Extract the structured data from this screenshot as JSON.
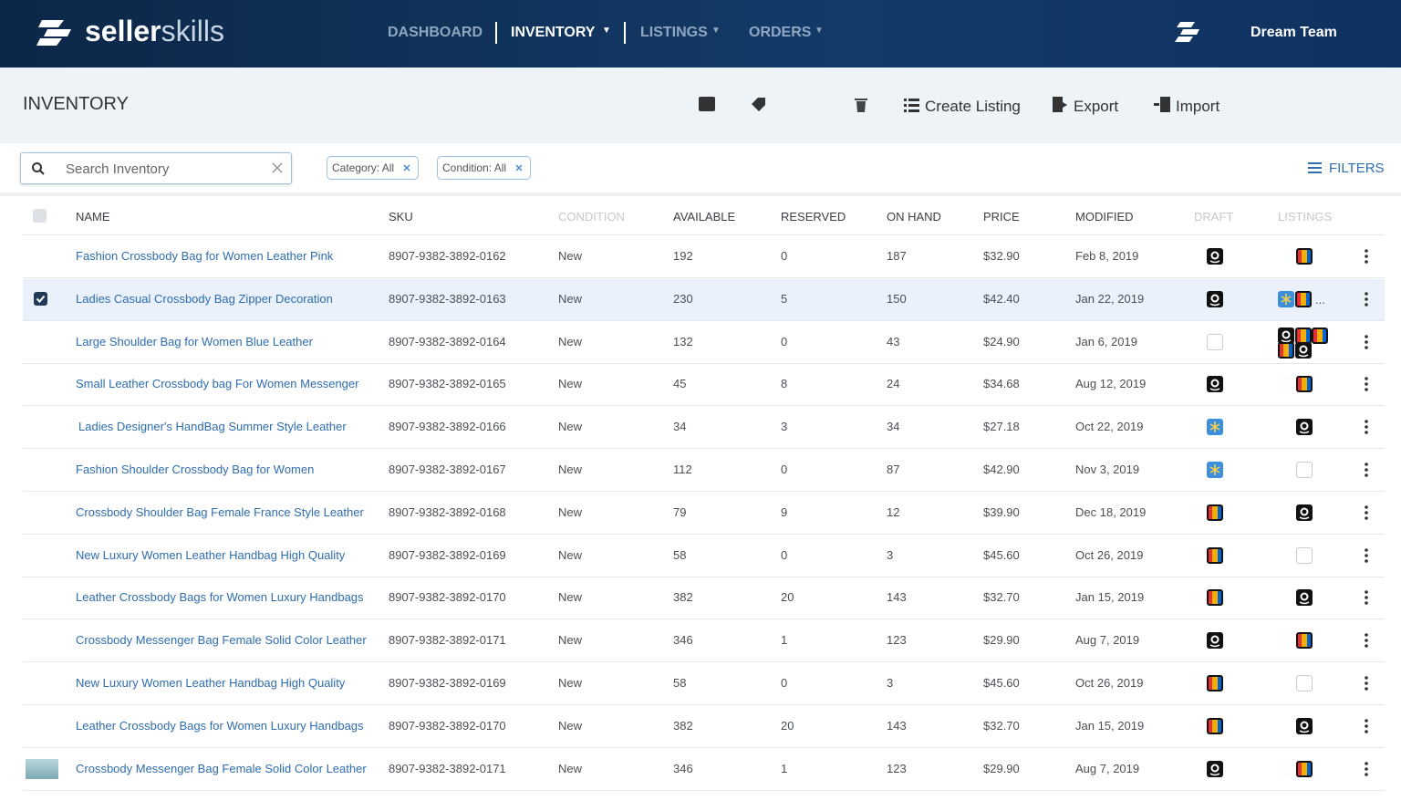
{
  "nav": {
    "brand_a": "seller",
    "brand_b": "skills",
    "menu": [
      "DASHBOARD",
      "INVENTORY",
      "LISTINGS",
      "ORDERS"
    ],
    "user": "Dream Team"
  },
  "toolbar": {
    "title": "INVENTORY",
    "actions": [
      "Create Listing",
      "Export",
      "Import"
    ]
  },
  "filters": {
    "search_placeholder": "Search Inventory",
    "chips": [
      "Category: All",
      "Condition: All"
    ],
    "filters_button": "FILTERS"
  },
  "table": {
    "headers": [
      "NAME",
      "SKU",
      "CONDITION",
      "AVAILABLE",
      "RESERVED",
      "ON HAND",
      "PRICE",
      "MODIFIED",
      "DRAFT",
      "LISTINGS"
    ],
    "rows": [
      [
        "Fashion Crossbody Bag for Women Leather Pink",
        "8907-9382-3892-0162",
        "New",
        "192",
        "0",
        "187",
        "$32.90",
        "Feb 8, 2019"
      ],
      [
        "Ladies Casual Crossbody Bag Zipper Decoration",
        "8907-9382-3892-0163",
        "New",
        "230",
        "5",
        "150",
        "$42.40",
        "Jan 22, 2019"
      ],
      [
        "Large Shoulder Bag for Women Blue Leather",
        "8907-9382-3892-0164",
        "New",
        "132",
        "0",
        "43",
        "$24.90",
        "Jan 6, 2019"
      ],
      [
        "Small Leather Crossbody bag For Women Messenger",
        "8907-9382-3892-0165",
        "New",
        "45",
        "8",
        "24",
        "$34.68",
        "Aug 12, 2019"
      ],
      [
        "Ladies Designer's HandBag Summer Style Leather",
        "8907-9382-3892-0166",
        "New",
        "34",
        "3",
        "34",
        "$27.18",
        "Oct 22, 2019"
      ],
      [
        "Fashion Shoulder Crossbody Bag for Women",
        "8907-9382-3892-0167",
        "New",
        "112",
        "0",
        "87",
        "$42.90",
        "Nov 3, 2019"
      ],
      [
        "Crossbody Shoulder Bag Female France Style Leather",
        "8907-9382-3892-0168",
        "New",
        "79",
        "9",
        "12",
        "$39.90",
        "Dec 18, 2019"
      ],
      [
        "New Luxury Women Leather Handbag High Quality",
        "8907-9382-3892-0169",
        "New",
        "58",
        "0",
        "3",
        "$45.60",
        "Oct 26, 2019"
      ],
      [
        "Leather Crossbody Bags for Women Luxury Handbags",
        "8907-9382-3892-0170",
        "New",
        "382",
        "20",
        "143",
        "$32.70",
        "Jan 15, 2019"
      ],
      [
        "Crossbody Messenger Bag Female Solid Color Leather",
        "8907-9382-3892-0171",
        "New",
        "346",
        "1",
        "123",
        "$29.90",
        "Aug 7, 2019"
      ],
      [
        "New Luxury Women Leather Handbag High Quality",
        "8907-9382-3892-0169",
        "New",
        "58",
        "0",
        "3",
        "$45.60",
        "Oct 26, 2019"
      ],
      [
        "Leather Crossbody Bags for Women Luxury Handbags",
        "8907-9382-3892-0170",
        "New",
        "382",
        "20",
        "143",
        "$32.70",
        "Jan 15, 2019"
      ],
      [
        "Crossbody Messenger Bag Female Solid Color Leather",
        "8907-9382-3892-0171",
        "New",
        "346",
        "1",
        "123",
        "$29.90",
        "Aug 7, 2019"
      ]
    ],
    "listings_more": "..."
  }
}
